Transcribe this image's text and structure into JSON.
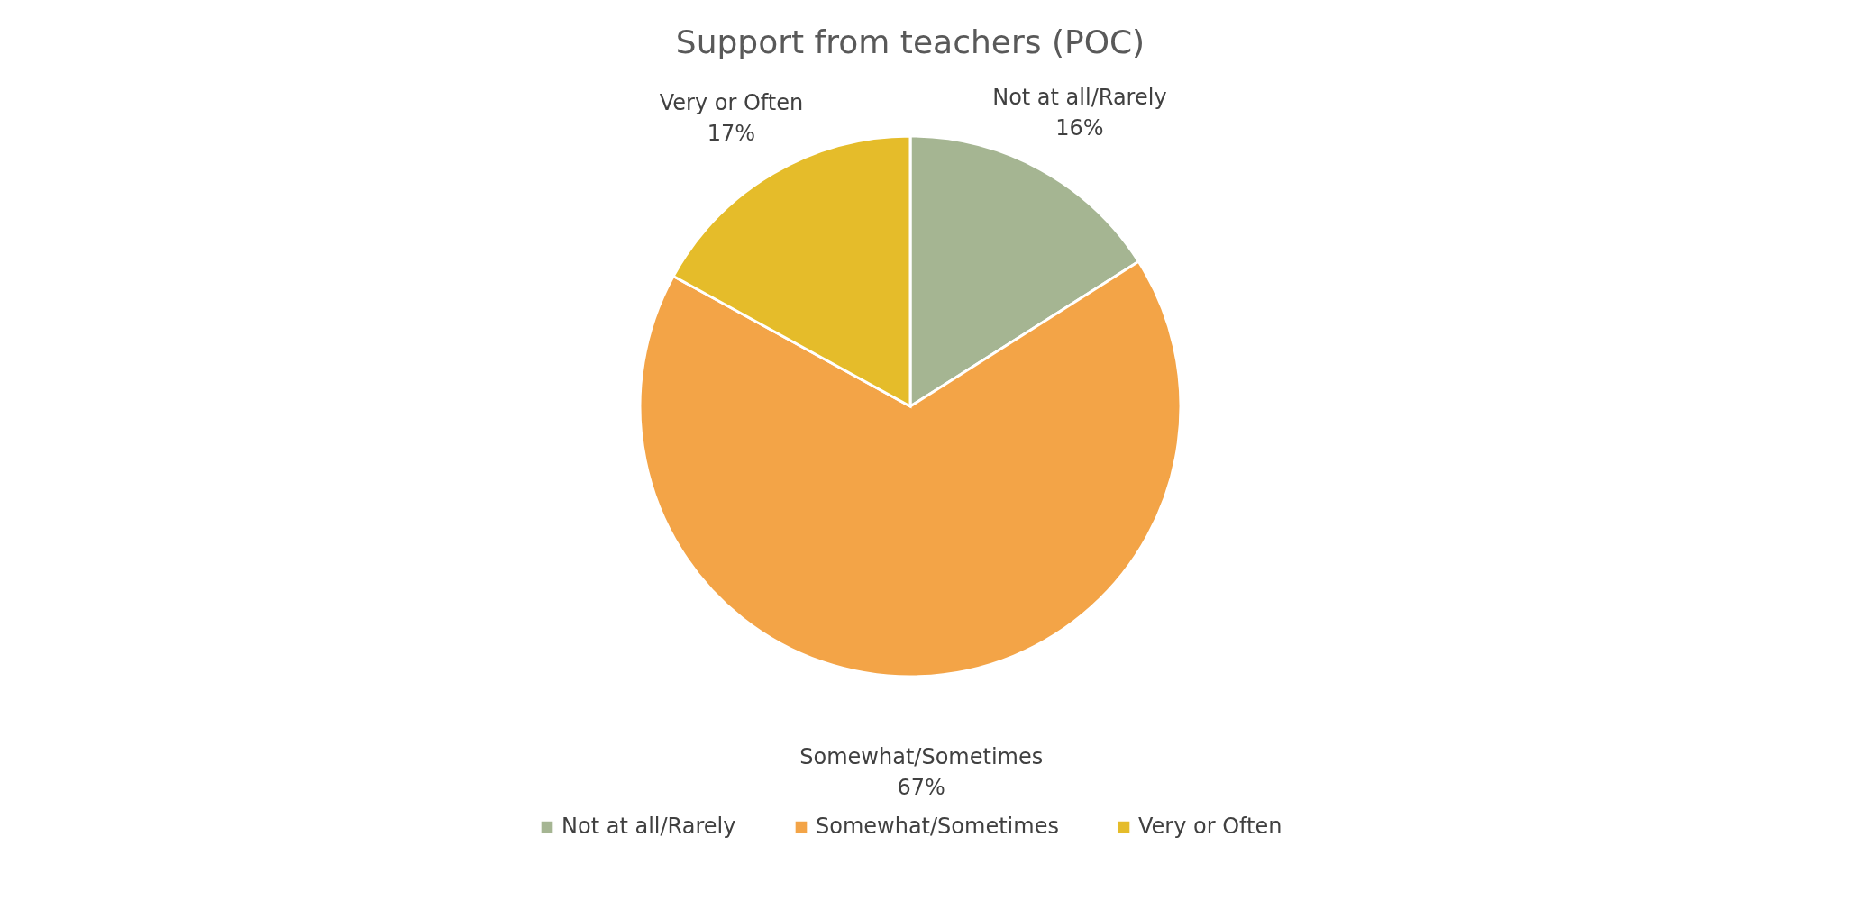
{
  "chart_data": {
    "type": "pie",
    "title": "Support from teachers (POC)",
    "categories": [
      "Not at all/Rarely",
      "Somewhat/Sometimes",
      "Very or Often"
    ],
    "values": [
      16,
      67,
      17
    ],
    "colors": [
      "#a5b592",
      "#f3a447",
      "#e5bc2a"
    ],
    "value_labels": [
      "16%",
      "67%",
      "17%"
    ],
    "legend": "bottom"
  }
}
